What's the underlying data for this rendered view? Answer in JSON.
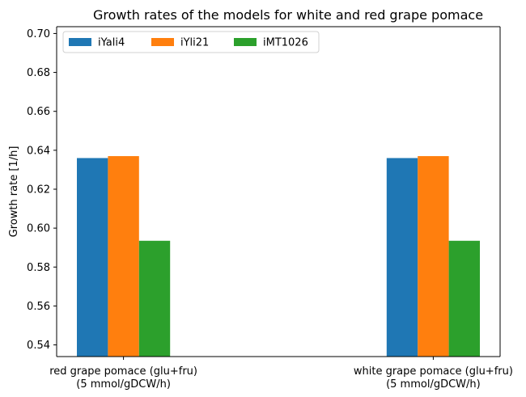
{
  "chart_data": {
    "type": "bar",
    "title": "Growth rates of the models for white and red grape pomace",
    "xlabel": "",
    "ylabel": "Growth rate [1/h]",
    "categories": [
      [
        "red grape pomace (glu+fru)",
        "(5 mmol/gDCW/h)"
      ],
      [
        "white grape pomace (glu+fru)",
        "(5 mmol/gDCW/h)"
      ]
    ],
    "series": [
      {
        "name": "iYali4",
        "color": "#1f77b4",
        "values": [
          0.636,
          0.636
        ]
      },
      {
        "name": "iYli21",
        "color": "#ff7f0e",
        "values": [
          0.637,
          0.637
        ]
      },
      {
        "name": "iMT1026",
        "color": "#2ca02c",
        "values": [
          0.5935,
          0.5935
        ]
      }
    ],
    "ylim": [
      0.534,
      0.7035
    ],
    "yticks": [
      "0.54",
      "0.56",
      "0.58",
      "0.60",
      "0.62",
      "0.64",
      "0.66",
      "0.68",
      "0.70"
    ],
    "grid": false,
    "legend": "upper left, 3 columns"
  }
}
